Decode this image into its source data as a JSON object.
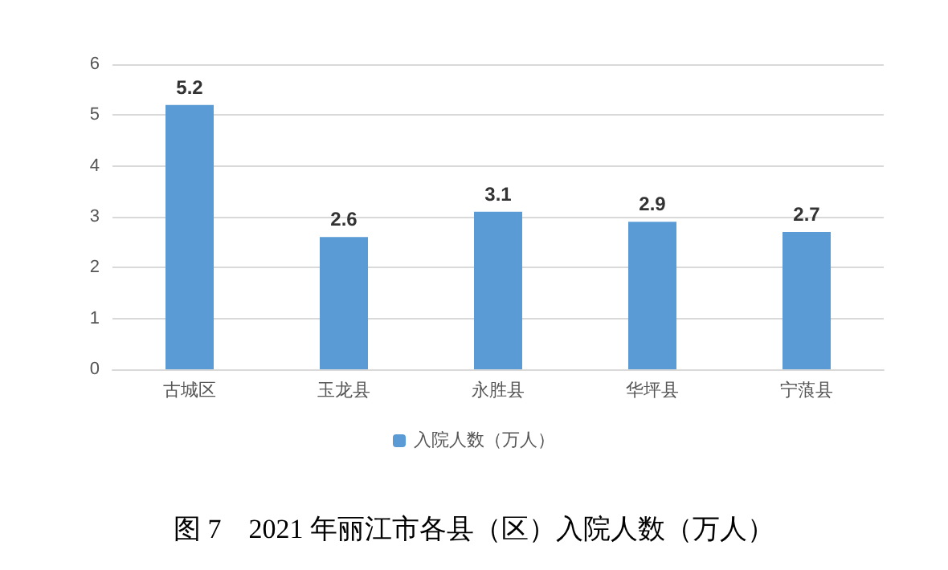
{
  "chart_data": {
    "type": "bar",
    "title": "图 7　2021 年丽江市各县（区）入院人数（万人）",
    "categories": [
      "古城区",
      "玉龙县",
      "永胜县",
      "华坪县",
      "宁蒗县"
    ],
    "series": [
      {
        "name": "入院人数（万人）",
        "color": "#5b9bd5",
        "values": [
          5.2,
          2.6,
          3.1,
          2.9,
          2.7
        ]
      }
    ],
    "ylim": [
      0,
      6
    ],
    "yticks": [
      0,
      1,
      2,
      3,
      4,
      5,
      6
    ],
    "grid": "y",
    "legend": "bottom",
    "data_labels": true
  }
}
